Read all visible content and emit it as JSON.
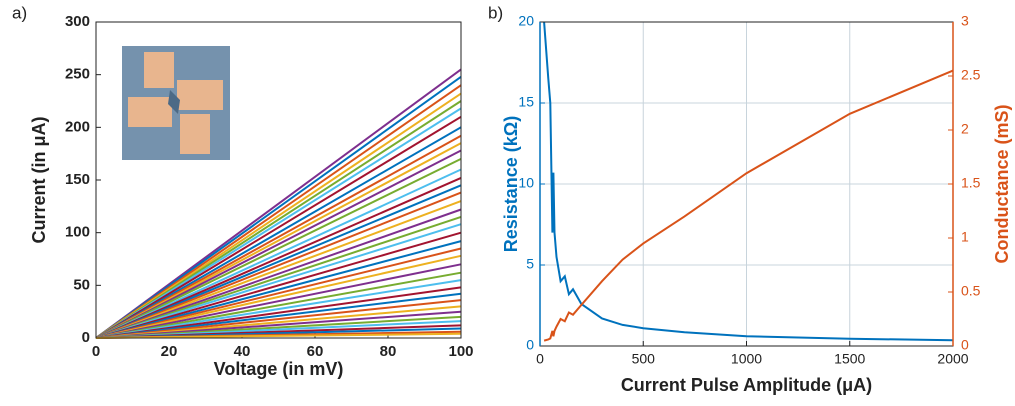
{
  "chart_data": [
    {
      "type": "line",
      "panel_label": "a)",
      "xlabel": "Voltage (in mV)",
      "ylabel": "Current (in μA)",
      "xlim": [
        0,
        100
      ],
      "xticks": [
        0,
        20,
        40,
        60,
        80,
        100
      ],
      "ylim": [
        0,
        300
      ],
      "yticks": [
        0,
        50,
        100,
        150,
        200,
        250,
        300
      ],
      "grid": false,
      "x": [
        0,
        100
      ],
      "series": [
        {
          "color": "#7E2F8E",
          "values": [
            0,
            255
          ]
        },
        {
          "color": "#0072BD",
          "values": [
            0,
            248
          ]
        },
        {
          "color": "#D95319",
          "values": [
            0,
            240
          ]
        },
        {
          "color": "#EDB120",
          "values": [
            0,
            232
          ]
        },
        {
          "color": "#77AC30",
          "values": [
            0,
            225
          ]
        },
        {
          "color": "#4DBEEE",
          "values": [
            0,
            218
          ]
        },
        {
          "color": "#A2142F",
          "values": [
            0,
            210
          ]
        },
        {
          "color": "#0072BD",
          "values": [
            0,
            200
          ]
        },
        {
          "color": "#D95319",
          "values": [
            0,
            192
          ]
        },
        {
          "color": "#EDB120",
          "values": [
            0,
            185
          ]
        },
        {
          "color": "#7E2F8E",
          "values": [
            0,
            178
          ]
        },
        {
          "color": "#77AC30",
          "values": [
            0,
            170
          ]
        },
        {
          "color": "#4DBEEE",
          "values": [
            0,
            160
          ]
        },
        {
          "color": "#A2142F",
          "values": [
            0,
            152
          ]
        },
        {
          "color": "#0072BD",
          "values": [
            0,
            145
          ]
        },
        {
          "color": "#D95319",
          "values": [
            0,
            138
          ]
        },
        {
          "color": "#EDB120",
          "values": [
            0,
            130
          ]
        },
        {
          "color": "#7E2F8E",
          "values": [
            0,
            122
          ]
        },
        {
          "color": "#77AC30",
          "values": [
            0,
            115
          ]
        },
        {
          "color": "#4DBEEE",
          "values": [
            0,
            108
          ]
        },
        {
          "color": "#A2142F",
          "values": [
            0,
            100
          ]
        },
        {
          "color": "#0072BD",
          "values": [
            0,
            92
          ]
        },
        {
          "color": "#D95319",
          "values": [
            0,
            85
          ]
        },
        {
          "color": "#EDB120",
          "values": [
            0,
            78
          ]
        },
        {
          "color": "#7E2F8E",
          "values": [
            0,
            70
          ]
        },
        {
          "color": "#77AC30",
          "values": [
            0,
            62
          ]
        },
        {
          "color": "#4DBEEE",
          "values": [
            0,
            55
          ]
        },
        {
          "color": "#A2142F",
          "values": [
            0,
            48
          ]
        },
        {
          "color": "#0072BD",
          "values": [
            0,
            42
          ]
        },
        {
          "color": "#D95319",
          "values": [
            0,
            36
          ]
        },
        {
          "color": "#EDB120",
          "values": [
            0,
            30
          ]
        },
        {
          "color": "#7E2F8E",
          "values": [
            0,
            25
          ]
        },
        {
          "color": "#77AC30",
          "values": [
            0,
            20
          ]
        },
        {
          "color": "#4DBEEE",
          "values": [
            0,
            16
          ]
        },
        {
          "color": "#A2142F",
          "values": [
            0,
            12
          ]
        },
        {
          "color": "#0072BD",
          "values": [
            0,
            9
          ]
        },
        {
          "color": "#D95319",
          "values": [
            0,
            6
          ]
        },
        {
          "color": "#EDB120",
          "values": [
            0,
            4
          ]
        }
      ]
    },
    {
      "type": "line",
      "panel_label": "b)",
      "xlabel": "Current Pulse Amplitude (μA)",
      "ylabel": "Resistance (kΩ)",
      "y2label": "Conductance (mS)",
      "xlim": [
        0,
        2000
      ],
      "xticks": [
        0,
        500,
        1000,
        1500,
        2000
      ],
      "ylim": [
        0,
        20
      ],
      "yticks": [
        0,
        5,
        10,
        15,
        20
      ],
      "y2lim": [
        0,
        3
      ],
      "y2ticks": [
        0,
        0.5,
        1,
        1.5,
        2,
        2.5,
        3
      ],
      "grid": true,
      "x": [
        20,
        40,
        50,
        60,
        65,
        70,
        80,
        100,
        120,
        140,
        160,
        200,
        300,
        400,
        500,
        700,
        1000,
        1500,
        2000
      ],
      "series": [
        {
          "color": "#0072BD",
          "axis": "y",
          "values": [
            20,
            16.5,
            15,
            7,
            10.7,
            7,
            5.5,
            4,
            4.3,
            3.2,
            3.5,
            2.6,
            1.7,
            1.3,
            1.1,
            0.85,
            0.6,
            0.45,
            0.35
          ]
        },
        {
          "color": "#D95319",
          "axis": "y2",
          "values": [
            0.05,
            0.06,
            0.07,
            0.14,
            0.09,
            0.14,
            0.18,
            0.25,
            0.23,
            0.31,
            0.29,
            0.38,
            0.6,
            0.8,
            0.95,
            1.2,
            1.6,
            2.15,
            2.55
          ]
        }
      ]
    }
  ]
}
